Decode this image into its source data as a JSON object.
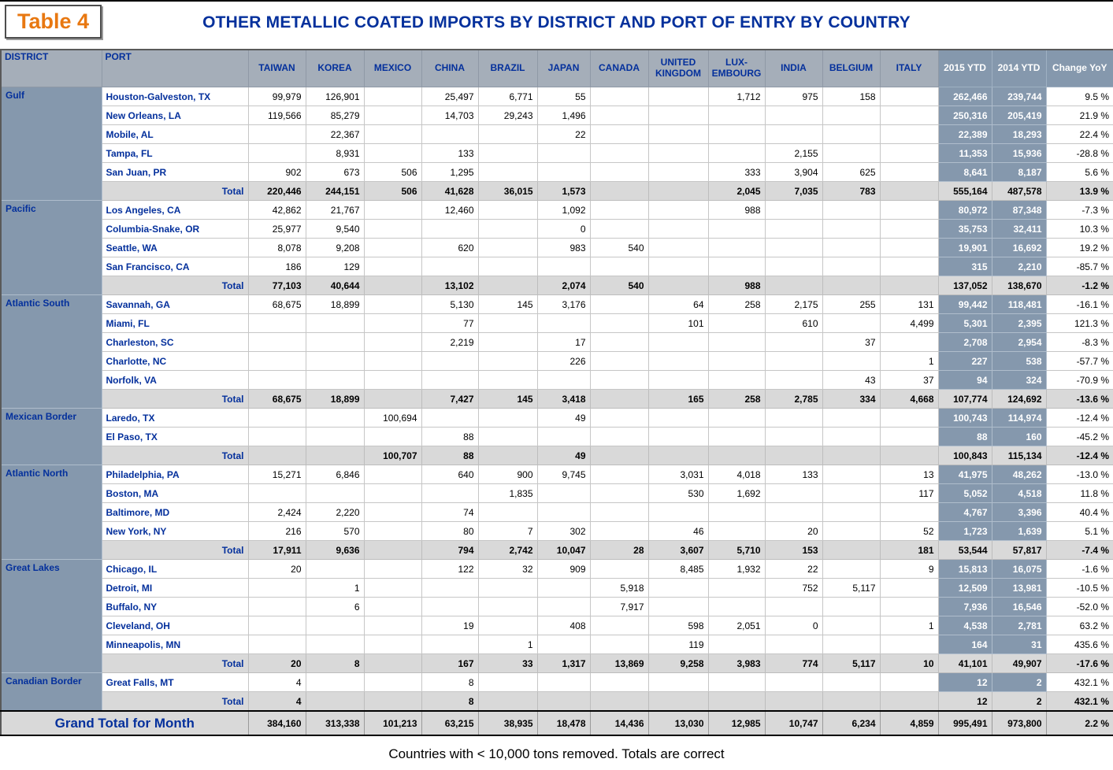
{
  "header": {
    "table_label": "Table 4",
    "title": "OTHER METALLIC COATED IMPORTS BY DISTRICT AND PORT OF ENTRY BY COUNTRY"
  },
  "colors": {
    "accent_orange": "#E87811",
    "navy_blue": "#04309C",
    "slate_blue": "#8598AD",
    "header_gray": "#A5AEB9",
    "total_gray": "#D9D9D9"
  },
  "chart_data": {
    "type": "table",
    "columns": [
      "DISTRICT",
      "PORT",
      "TAIWAN",
      "KOREA",
      "MEXICO",
      "CHINA",
      "BRAZIL",
      "JAPAN",
      "CANADA",
      "UNITED KINGDOM",
      "LUX-EMBOURG",
      "INDIA",
      "BELGIUM",
      "ITALY",
      "2015 YTD",
      "2014 YTD",
      "Change YoY"
    ],
    "total_label": "Total",
    "districts": [
      {
        "name": "Gulf",
        "ports": [
          {
            "port": "Houston-Galveston, TX",
            "values": [
              "99,979",
              "126,901",
              "",
              "25,497",
              "6,771",
              "55",
              "",
              "",
              "1,712",
              "975",
              "158",
              "",
              "262,466",
              "239,744",
              "9.5 %"
            ]
          },
          {
            "port": "New Orleans, LA",
            "values": [
              "119,566",
              "85,279",
              "",
              "14,703",
              "29,243",
              "1,496",
              "",
              "",
              "",
              "",
              "",
              "",
              "250,316",
              "205,419",
              "21.9 %"
            ]
          },
          {
            "port": "Mobile, AL",
            "values": [
              "",
              "22,367",
              "",
              "",
              "",
              "22",
              "",
              "",
              "",
              "",
              "",
              "",
              "22,389",
              "18,293",
              "22.4 %"
            ]
          },
          {
            "port": "Tampa, FL",
            "values": [
              "",
              "8,931",
              "",
              "133",
              "",
              "",
              "",
              "",
              "",
              "2,155",
              "",
              "",
              "11,353",
              "15,936",
              "-28.8 %"
            ]
          },
          {
            "port": "San Juan, PR",
            "values": [
              "902",
              "673",
              "506",
              "1,295",
              "",
              "",
              "",
              "",
              "333",
              "3,904",
              "625",
              "",
              "8,641",
              "8,187",
              "5.6 %"
            ]
          }
        ],
        "total": [
          "220,446",
          "244,151",
          "506",
          "41,628",
          "36,015",
          "1,573",
          "",
          "",
          "2,045",
          "7,035",
          "783",
          "",
          "555,164",
          "487,578",
          "13.9 %"
        ]
      },
      {
        "name": "Pacific",
        "ports": [
          {
            "port": "Los Angeles, CA",
            "values": [
              "42,862",
              "21,767",
              "",
              "12,460",
              "",
              "1,092",
              "",
              "",
              "988",
              "",
              "",
              "",
              "80,972",
              "87,348",
              "-7.3 %"
            ]
          },
          {
            "port": "Columbia-Snake, OR",
            "values": [
              "25,977",
              "9,540",
              "",
              "",
              "",
              "0",
              "",
              "",
              "",
              "",
              "",
              "",
              "35,753",
              "32,411",
              "10.3 %"
            ]
          },
          {
            "port": "Seattle, WA",
            "values": [
              "8,078",
              "9,208",
              "",
              "620",
              "",
              "983",
              "540",
              "",
              "",
              "",
              "",
              "",
              "19,901",
              "16,692",
              "19.2 %"
            ]
          },
          {
            "port": "San Francisco, CA",
            "values": [
              "186",
              "129",
              "",
              "",
              "",
              "",
              "",
              "",
              "",
              "",
              "",
              "",
              "315",
              "2,210",
              "-85.7 %"
            ]
          }
        ],
        "total": [
          "77,103",
          "40,644",
          "",
          "13,102",
          "",
          "2,074",
          "540",
          "",
          "988",
          "",
          "",
          "",
          "137,052",
          "138,670",
          "-1.2 %"
        ]
      },
      {
        "name": "Atlantic South",
        "ports": [
          {
            "port": "Savannah, GA",
            "values": [
              "68,675",
              "18,899",
              "",
              "5,130",
              "145",
              "3,176",
              "",
              "64",
              "258",
              "2,175",
              "255",
              "131",
              "99,442",
              "118,481",
              "-16.1 %"
            ]
          },
          {
            "port": "Miami, FL",
            "values": [
              "",
              "",
              "",
              "77",
              "",
              "",
              "",
              "101",
              "",
              "610",
              "",
              "4,499",
              "5,301",
              "2,395",
              "121.3 %"
            ]
          },
          {
            "port": "Charleston, SC",
            "values": [
              "",
              "",
              "",
              "2,219",
              "",
              "17",
              "",
              "",
              "",
              "",
              "37",
              "",
              "2,708",
              "2,954",
              "-8.3 %"
            ]
          },
          {
            "port": "Charlotte, NC",
            "values": [
              "",
              "",
              "",
              "",
              "",
              "226",
              "",
              "",
              "",
              "",
              "",
              "1",
              "227",
              "538",
              "-57.7 %"
            ]
          },
          {
            "port": "Norfolk, VA",
            "values": [
              "",
              "",
              "",
              "",
              "",
              "",
              "",
              "",
              "",
              "",
              "43",
              "37",
              "94",
              "324",
              "-70.9 %"
            ]
          }
        ],
        "total": [
          "68,675",
          "18,899",
          "",
          "7,427",
          "145",
          "3,418",
          "",
          "165",
          "258",
          "2,785",
          "334",
          "4,668",
          "107,774",
          "124,692",
          "-13.6 %"
        ]
      },
      {
        "name": "Mexican Border",
        "ports": [
          {
            "port": "Laredo, TX",
            "values": [
              "",
              "",
              "100,694",
              "",
              "",
              "49",
              "",
              "",
              "",
              "",
              "",
              "",
              "100,743",
              "114,974",
              "-12.4 %"
            ]
          },
          {
            "port": "El Paso, TX",
            "values": [
              "",
              "",
              "",
              "88",
              "",
              "",
              "",
              "",
              "",
              "",
              "",
              "",
              "88",
              "160",
              "-45.2 %"
            ]
          }
        ],
        "total": [
          "",
          "",
          "100,707",
          "88",
          "",
          "49",
          "",
          "",
          "",
          "",
          "",
          "",
          "100,843",
          "115,134",
          "-12.4 %"
        ]
      },
      {
        "name": "Atlantic North",
        "ports": [
          {
            "port": "Philadelphia, PA",
            "values": [
              "15,271",
              "6,846",
              "",
              "640",
              "900",
              "9,745",
              "",
              "3,031",
              "4,018",
              "133",
              "",
              "13",
              "41,975",
              "48,262",
              "-13.0 %"
            ]
          },
          {
            "port": "Boston, MA",
            "values": [
              "",
              "",
              "",
              "",
              "1,835",
              "",
              "",
              "530",
              "1,692",
              "",
              "",
              "117",
              "5,052",
              "4,518",
              "11.8 %"
            ]
          },
          {
            "port": "Baltimore, MD",
            "values": [
              "2,424",
              "2,220",
              "",
              "74",
              "",
              "",
              "",
              "",
              "",
              "",
              "",
              "",
              "4,767",
              "3,396",
              "40.4 %"
            ]
          },
          {
            "port": "New York, NY",
            "values": [
              "216",
              "570",
              "",
              "80",
              "7",
              "302",
              "",
              "46",
              "",
              "20",
              "",
              "52",
              "1,723",
              "1,639",
              "5.1 %"
            ]
          }
        ],
        "total": [
          "17,911",
          "9,636",
          "",
          "794",
          "2,742",
          "10,047",
          "28",
          "3,607",
          "5,710",
          "153",
          "",
          "181",
          "53,544",
          "57,817",
          "-7.4 %"
        ]
      },
      {
        "name": "Great Lakes",
        "ports": [
          {
            "port": "Chicago, IL",
            "values": [
              "20",
              "",
              "",
              "122",
              "32",
              "909",
              "",
              "8,485",
              "1,932",
              "22",
              "",
              "9",
              "15,813",
              "16,075",
              "-1.6 %"
            ]
          },
          {
            "port": "Detroit, MI",
            "values": [
              "",
              "1",
              "",
              "",
              "",
              "",
              "5,918",
              "",
              "",
              "752",
              "5,117",
              "",
              "12,509",
              "13,981",
              "-10.5 %"
            ]
          },
          {
            "port": "Buffalo, NY",
            "values": [
              "",
              "6",
              "",
              "",
              "",
              "",
              "7,917",
              "",
              "",
              "",
              "",
              "",
              "7,936",
              "16,546",
              "-52.0 %"
            ]
          },
          {
            "port": "Cleveland, OH",
            "values": [
              "",
              "",
              "",
              "19",
              "",
              "408",
              "",
              "598",
              "2,051",
              "0",
              "",
              "1",
              "4,538",
              "2,781",
              "63.2 %"
            ]
          },
          {
            "port": "Minneapolis, MN",
            "values": [
              "",
              "",
              "",
              "",
              "1",
              "",
              "",
              "119",
              "",
              "",
              "",
              "",
              "164",
              "31",
              "435.6 %"
            ]
          }
        ],
        "total": [
          "20",
          "8",
          "",
          "167",
          "33",
          "1,317",
          "13,869",
          "9,258",
          "3,983",
          "774",
          "5,117",
          "10",
          "41,101",
          "49,907",
          "-17.6 %"
        ]
      },
      {
        "name": "Canadian Border",
        "ports": [
          {
            "port": "Great Falls, MT",
            "values": [
              "4",
              "",
              "",
              "8",
              "",
              "",
              "",
              "",
              "",
              "",
              "",
              "",
              "12",
              "2",
              "432.1 %"
            ]
          }
        ],
        "total": [
          "4",
          "",
          "",
          "8",
          "",
          "",
          "",
          "",
          "",
          "",
          "",
          "",
          "12",
          "2",
          "432.1 %"
        ]
      }
    ],
    "grand_total": {
      "label": "Grand Total for Month",
      "values": [
        "384,160",
        "313,338",
        "101,213",
        "63,215",
        "38,935",
        "18,478",
        "14,436",
        "13,030",
        "12,985",
        "10,747",
        "6,234",
        "4,859",
        "995,491",
        "973,800",
        "2.2 %"
      ]
    }
  },
  "footnote": "Countries with < 10,000 tons removed. Totals are correct"
}
